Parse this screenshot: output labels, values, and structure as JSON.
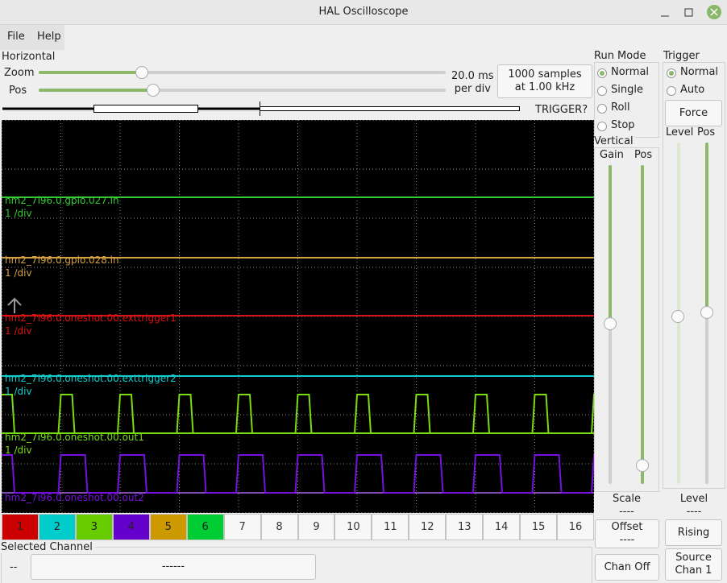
{
  "window": {
    "title": "HAL Oscilloscope"
  },
  "menu": [
    "File",
    "Help"
  ],
  "horizontal": {
    "title": "Horizontal",
    "zoom_label": "Zoom",
    "pos_label": "Pos",
    "scale": [
      "20.0 ms",
      "per div"
    ],
    "samples": [
      "1000 samples",
      "at 1.00 kHz"
    ],
    "trigger_status": "TRIGGER?"
  },
  "run_mode": {
    "title": "Run Mode",
    "options": [
      "Normal",
      "Single",
      "Roll",
      "Stop"
    ]
  },
  "trigger": {
    "title": "Trigger",
    "options": [
      "Normal",
      "Auto"
    ],
    "force": "Force",
    "level_label": "Level",
    "pos_label": "Pos",
    "level_title": "Level",
    "level_value": "----",
    "edge": "Rising",
    "source": [
      "Source",
      "Chan  1"
    ]
  },
  "vertical": {
    "title": "Vertical",
    "gain_label": "Gain",
    "pos_label": "Pos",
    "scale_title": "Scale",
    "scale_value": "----",
    "offset": [
      "Offset",
      "----"
    ],
    "chan_off": "Chan Off"
  },
  "traces": [
    {
      "name": "hm2_7i96.0.gpio.027.in",
      "scale": "1 /div"
    },
    {
      "name": "hm2_7i96.0.gpio.028.in",
      "scale": "1 /div"
    },
    {
      "name": "hm2_7i96.0.oneshot.00.exttrigger1",
      "scale": "1 /div"
    },
    {
      "name": "hm2_7i96.0.oneshot.00.exttrigger2",
      "scale": "1 /div"
    },
    {
      "name": "hm2_7i96.0.oneshot.00.out1",
      "scale": "1 /div"
    },
    {
      "name": "hm2_7i96.0.oneshot.00.out2"
    }
  ],
  "channels": [
    "1",
    "2",
    "3",
    "4",
    "5",
    "6",
    "7",
    "8",
    "9",
    "10",
    "11",
    "12",
    "13",
    "14",
    "15",
    "16"
  ],
  "selected_channel": {
    "title": "Selected Channel",
    "short": "--",
    "name": "------"
  }
}
